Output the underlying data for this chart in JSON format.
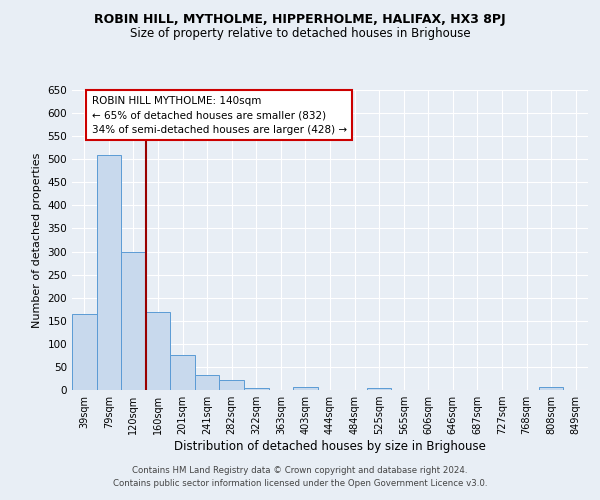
{
  "title": "ROBIN HILL, MYTHOLME, HIPPERHOLME, HALIFAX, HX3 8PJ",
  "subtitle": "Size of property relative to detached houses in Brighouse",
  "xlabel": "Distribution of detached houses by size in Brighouse",
  "ylabel": "Number of detached properties",
  "footer_line1": "Contains HM Land Registry data © Crown copyright and database right 2024.",
  "footer_line2": "Contains public sector information licensed under the Open Government Licence v3.0.",
  "categories": [
    "39sqm",
    "79sqm",
    "120sqm",
    "160sqm",
    "201sqm",
    "241sqm",
    "282sqm",
    "322sqm",
    "363sqm",
    "403sqm",
    "444sqm",
    "484sqm",
    "525sqm",
    "565sqm",
    "606sqm",
    "646sqm",
    "687sqm",
    "727sqm",
    "768sqm",
    "808sqm",
    "849sqm"
  ],
  "values": [
    165,
    510,
    300,
    170,
    75,
    33,
    22,
    5,
    0,
    7,
    0,
    0,
    5,
    0,
    0,
    0,
    0,
    0,
    0,
    7,
    0
  ],
  "bar_color": "#c8d9ed",
  "bar_edge_color": "#5b9bd5",
  "background_color": "#e8eef5",
  "plot_bg_color": "#e8eef5",
  "grid_color": "#ffffff",
  "vline_x": 2.5,
  "vline_color": "#990000",
  "annotation_text": "ROBIN HILL MYTHOLME: 140sqm\n← 65% of detached houses are smaller (832)\n34% of semi-detached houses are larger (428) →",
  "annotation_box_facecolor": "#ffffff",
  "annotation_box_edgecolor": "#cc0000",
  "ylim": [
    0,
    650
  ],
  "yticks": [
    0,
    50,
    100,
    150,
    200,
    250,
    300,
    350,
    400,
    450,
    500,
    550,
    600,
    650
  ]
}
